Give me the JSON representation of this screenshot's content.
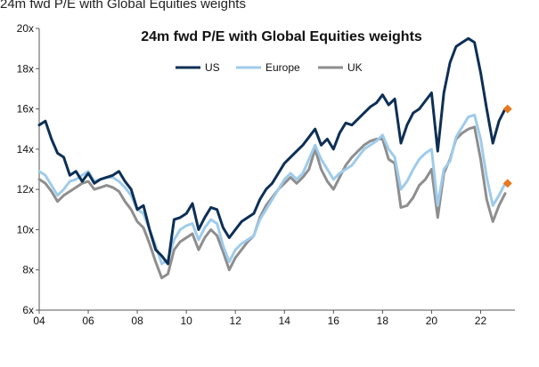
{
  "caption": "24m fwd P/E with Global Equities weights",
  "chart_data": {
    "type": "line",
    "title": "24m fwd P/E with Global Equities weights",
    "xlabel": "",
    "ylabel": "",
    "xlim": [
      2004,
      2023.4
    ],
    "ylim": [
      6,
      20
    ],
    "x_ticks": [
      2004,
      2006,
      2008,
      2010,
      2012,
      2014,
      2016,
      2018,
      2020,
      2022
    ],
    "x_tick_labels": [
      "04",
      "06",
      "08",
      "10",
      "12",
      "14",
      "16",
      "18",
      "20",
      "22"
    ],
    "y_ticks": [
      6,
      8,
      10,
      12,
      14,
      16,
      18,
      20
    ],
    "y_tick_labels": [
      "6x",
      "8x",
      "10x",
      "12x",
      "14x",
      "16x",
      "18x",
      "20x"
    ],
    "grid": false,
    "legend_position": "top",
    "series": [
      {
        "name": "US",
        "color": "#0d2f55",
        "x": [
          2004.0,
          2004.25,
          2004.5,
          2004.75,
          2005.0,
          2005.25,
          2005.5,
          2005.75,
          2006.0,
          2006.25,
          2006.5,
          2006.75,
          2007.0,
          2007.25,
          2007.5,
          2007.75,
          2008.0,
          2008.25,
          2008.5,
          2008.75,
          2009.0,
          2009.25,
          2009.5,
          2009.75,
          2010.0,
          2010.25,
          2010.5,
          2010.75,
          2011.0,
          2011.25,
          2011.5,
          2011.75,
          2012.0,
          2012.25,
          2012.5,
          2012.75,
          2013.0,
          2013.25,
          2013.5,
          2013.75,
          2014.0,
          2014.25,
          2014.5,
          2014.75,
          2015.0,
          2015.25,
          2015.5,
          2015.75,
          2016.0,
          2016.25,
          2016.5,
          2016.75,
          2017.0,
          2017.25,
          2017.5,
          2017.75,
          2018.0,
          2018.25,
          2018.5,
          2018.75,
          2019.0,
          2019.25,
          2019.5,
          2019.75,
          2020.0,
          2020.25,
          2020.5,
          2020.75,
          2021.0,
          2021.25,
          2021.5,
          2021.75,
          2022.0,
          2022.25,
          2022.5,
          2022.75,
          2023.0
        ],
        "values": [
          15.2,
          15.4,
          14.5,
          13.8,
          13.6,
          12.7,
          12.9,
          12.4,
          12.8,
          12.3,
          12.5,
          12.6,
          12.7,
          12.9,
          12.4,
          12.0,
          11.0,
          11.2,
          10.0,
          9.0,
          8.7,
          8.3,
          10.5,
          10.6,
          10.8,
          11.3,
          10.0,
          10.6,
          11.1,
          11.0,
          10.1,
          9.6,
          10.0,
          10.4,
          10.6,
          10.8,
          11.5,
          12.0,
          12.3,
          12.8,
          13.3,
          13.6,
          13.9,
          14.2,
          14.6,
          15.0,
          14.2,
          14.5,
          14.0,
          14.8,
          15.3,
          15.2,
          15.5,
          15.8,
          16.1,
          16.3,
          16.7,
          16.2,
          16.5,
          14.3,
          15.2,
          15.8,
          16.0,
          16.4,
          16.8,
          13.9,
          16.8,
          18.3,
          19.1,
          19.3,
          19.5,
          19.3,
          17.8,
          16.0,
          14.3,
          15.4,
          16.0
        ]
      },
      {
        "name": "Europe",
        "color": "#9fcbea",
        "x": [
          2004.0,
          2004.25,
          2004.5,
          2004.75,
          2005.0,
          2005.25,
          2005.5,
          2005.75,
          2006.0,
          2006.25,
          2006.5,
          2006.75,
          2007.0,
          2007.25,
          2007.5,
          2007.75,
          2008.0,
          2008.25,
          2008.5,
          2008.75,
          2009.0,
          2009.25,
          2009.5,
          2009.75,
          2010.0,
          2010.25,
          2010.5,
          2010.75,
          2011.0,
          2011.25,
          2011.5,
          2011.75,
          2012.0,
          2012.25,
          2012.5,
          2012.75,
          2013.0,
          2013.25,
          2013.5,
          2013.75,
          2014.0,
          2014.25,
          2014.5,
          2014.75,
          2015.0,
          2015.25,
          2015.5,
          2015.75,
          2016.0,
          2016.25,
          2016.5,
          2016.75,
          2017.0,
          2017.25,
          2017.5,
          2017.75,
          2018.0,
          2018.25,
          2018.5,
          2018.75,
          2019.0,
          2019.25,
          2019.5,
          2019.75,
          2020.0,
          2020.25,
          2020.5,
          2020.75,
          2021.0,
          2021.25,
          2021.5,
          2021.75,
          2022.0,
          2022.25,
          2022.5,
          2022.75,
          2023.0
        ],
        "values": [
          12.9,
          12.7,
          12.2,
          11.7,
          12.0,
          12.4,
          12.5,
          12.7,
          12.9,
          12.4,
          12.5,
          12.6,
          12.6,
          12.4,
          12.1,
          11.7,
          11.0,
          10.8,
          10.0,
          9.2,
          8.3,
          8.5,
          9.5,
          10.0,
          10.2,
          10.3,
          9.5,
          10.1,
          10.5,
          10.3,
          9.2,
          8.4,
          9.0,
          9.3,
          9.5,
          9.7,
          10.5,
          11.0,
          11.5,
          12.0,
          12.5,
          12.8,
          12.5,
          12.8,
          13.5,
          14.2,
          13.5,
          13.0,
          12.5,
          12.8,
          13.0,
          13.2,
          13.6,
          14.0,
          14.2,
          14.4,
          14.7,
          14.0,
          13.6,
          12.0,
          12.4,
          13.0,
          13.5,
          13.8,
          14.0,
          11.2,
          13.0,
          13.4,
          14.6,
          15.1,
          15.6,
          15.7,
          14.5,
          12.6,
          11.2,
          11.7,
          12.3
        ]
      },
      {
        "name": "UK",
        "color": "#8e8e8e",
        "x": [
          2004.0,
          2004.25,
          2004.5,
          2004.75,
          2005.0,
          2005.25,
          2005.5,
          2005.75,
          2006.0,
          2006.25,
          2006.5,
          2006.75,
          2007.0,
          2007.25,
          2007.5,
          2007.75,
          2008.0,
          2008.25,
          2008.5,
          2008.75,
          2009.0,
          2009.25,
          2009.5,
          2009.75,
          2010.0,
          2010.25,
          2010.5,
          2010.75,
          2011.0,
          2011.25,
          2011.5,
          2011.75,
          2012.0,
          2012.25,
          2012.5,
          2012.75,
          2013.0,
          2013.25,
          2013.5,
          2013.75,
          2014.0,
          2014.25,
          2014.5,
          2014.75,
          2015.0,
          2015.25,
          2015.5,
          2015.75,
          2016.0,
          2016.25,
          2016.5,
          2016.75,
          2017.0,
          2017.25,
          2017.5,
          2017.75,
          2018.0,
          2018.25,
          2018.5,
          2018.75,
          2019.0,
          2019.25,
          2019.5,
          2019.75,
          2020.0,
          2020.25,
          2020.5,
          2020.75,
          2021.0,
          2021.25,
          2021.5,
          2021.75,
          2022.0,
          2022.25,
          2022.5,
          2022.75,
          2023.0
        ],
        "values": [
          12.5,
          12.3,
          11.9,
          11.4,
          11.7,
          11.9,
          12.1,
          12.3,
          12.4,
          12.0,
          12.1,
          12.2,
          12.1,
          11.9,
          11.4,
          11.0,
          10.4,
          10.1,
          9.3,
          8.4,
          7.6,
          7.8,
          9.0,
          9.4,
          9.6,
          9.8,
          9.0,
          9.6,
          10.0,
          9.7,
          8.9,
          8.0,
          8.6,
          9.0,
          9.4,
          9.7,
          10.6,
          11.2,
          11.6,
          12.0,
          12.3,
          12.6,
          12.3,
          12.6,
          13.0,
          14.0,
          13.0,
          12.4,
          12.0,
          12.6,
          13.2,
          13.6,
          13.9,
          14.2,
          14.4,
          14.5,
          14.5,
          13.5,
          13.3,
          11.1,
          11.2,
          11.6,
          12.2,
          12.5,
          13.0,
          10.6,
          12.8,
          13.5,
          14.5,
          14.8,
          15.0,
          15.1,
          13.5,
          11.5,
          10.4,
          11.2,
          11.8
        ]
      }
    ],
    "markers": [
      {
        "x": 2023.1,
        "y": 16.0,
        "color": "#e8781e"
      },
      {
        "x": 2023.1,
        "y": 12.3,
        "color": "#e8781e"
      }
    ]
  }
}
